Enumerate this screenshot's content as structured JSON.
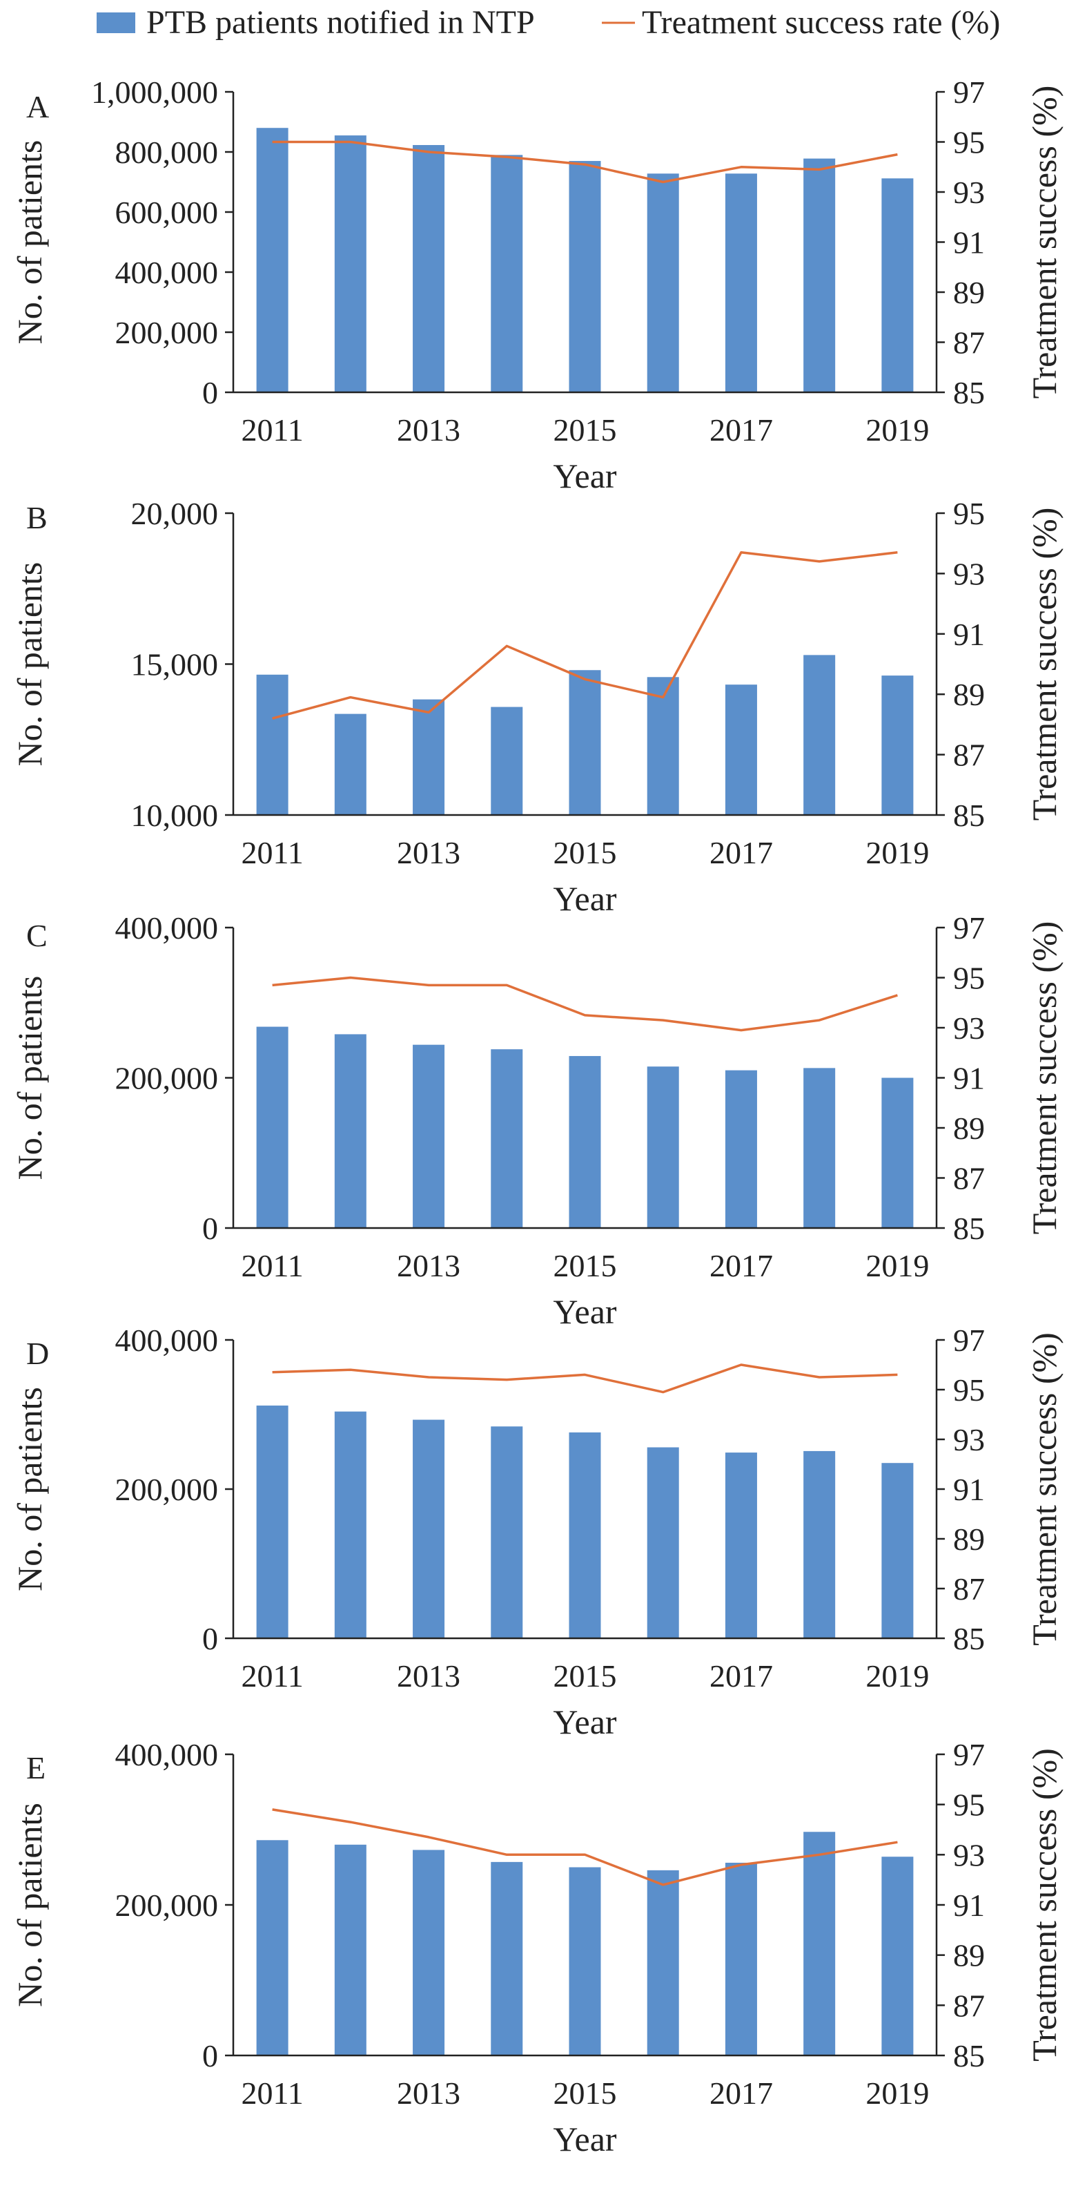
{
  "legend": {
    "bar_label": "PTB patients notified in NTP",
    "line_label": "Treatment success rate (%)"
  },
  "colors": {
    "bar": "#5b8fcb",
    "line": "#e0703a",
    "axis": "#222222"
  },
  "chart_data": [
    {
      "type": "bar",
      "panel": "A",
      "categories": [
        "2011",
        "2012",
        "2013",
        "2014",
        "2015",
        "2016",
        "2017",
        "2018",
        "2019"
      ],
      "x_tick_labels": [
        "2011",
        "2013",
        "2015",
        "2017",
        "2019"
      ],
      "series": [
        {
          "name": "PTB patients notified in NTP",
          "type": "bar",
          "axis": "left",
          "values": [
            880000,
            855000,
            823000,
            790000,
            770000,
            728000,
            728000,
            778000,
            712000
          ]
        },
        {
          "name": "Treatment success rate (%)",
          "type": "line",
          "axis": "right",
          "values": [
            95.0,
            95.0,
            94.6,
            94.4,
            94.1,
            93.4,
            94.0,
            93.9,
            94.5
          ]
        }
      ],
      "xlabel": "Year",
      "ylabel": "No. of patients",
      "y2label": "Treatment success (%)",
      "ylim": [
        0,
        1000000
      ],
      "yticks": [
        "0",
        "200,000",
        "400,000",
        "600,000",
        "800,000",
        "1,000,000"
      ],
      "y2lim": [
        85,
        97
      ],
      "y2ticks": [
        "85",
        "87",
        "89",
        "91",
        "93",
        "95",
        "97"
      ]
    },
    {
      "type": "bar",
      "panel": "B",
      "categories": [
        "2011",
        "2012",
        "2013",
        "2014",
        "2015",
        "2016",
        "2017",
        "2018",
        "2019"
      ],
      "x_tick_labels": [
        "2011",
        "2013",
        "2015",
        "2017",
        "2019"
      ],
      "series": [
        {
          "name": "PTB patients notified in NTP",
          "type": "bar",
          "axis": "left",
          "values": [
            14650,
            13350,
            13830,
            13580,
            14800,
            14570,
            14320,
            15300,
            14620
          ]
        },
        {
          "name": "Treatment success rate (%)",
          "type": "line",
          "axis": "right",
          "values": [
            88.2,
            88.9,
            88.4,
            90.6,
            89.5,
            88.9,
            93.7,
            93.4,
            93.7
          ]
        }
      ],
      "xlabel": "Year",
      "ylabel": "No. of patients",
      "y2label": "Treatment success (%)",
      "ylim": [
        10000,
        20000
      ],
      "yticks": [
        "10,000",
        "15,000",
        "20,000"
      ],
      "y2lim": [
        85,
        95
      ],
      "y2ticks": [
        "85",
        "87",
        "89",
        "91",
        "93",
        "95"
      ]
    },
    {
      "type": "bar",
      "panel": "C",
      "categories": [
        "2011",
        "2012",
        "2013",
        "2014",
        "2015",
        "2016",
        "2017",
        "2018",
        "2019"
      ],
      "x_tick_labels": [
        "2011",
        "2013",
        "2015",
        "2017",
        "2019"
      ],
      "series": [
        {
          "name": "PTB patients notified in NTP",
          "type": "bar",
          "axis": "left",
          "values": [
            268000,
            258000,
            244000,
            238000,
            229000,
            215000,
            210000,
            213000,
            200000
          ]
        },
        {
          "name": "Treatment success rate (%)",
          "type": "line",
          "axis": "right",
          "values": [
            94.7,
            95.0,
            94.7,
            94.7,
            93.5,
            93.3,
            92.9,
            93.3,
            94.3
          ]
        }
      ],
      "xlabel": "Year",
      "ylabel": "No. of patients",
      "y2label": "Treatment success (%)",
      "ylim": [
        0,
        400000
      ],
      "yticks": [
        "0",
        "200,000",
        "400,000"
      ],
      "y2lim": [
        85,
        97
      ],
      "y2ticks": [
        "85",
        "87",
        "89",
        "91",
        "93",
        "95",
        "97"
      ]
    },
    {
      "type": "bar",
      "panel": "D",
      "categories": [
        "2011",
        "2012",
        "2013",
        "2014",
        "2015",
        "2016",
        "2017",
        "2018",
        "2019"
      ],
      "x_tick_labels": [
        "2011",
        "2013",
        "2015",
        "2017",
        "2019"
      ],
      "series": [
        {
          "name": "PTB patients notified in NTP",
          "type": "bar",
          "axis": "left",
          "values": [
            312000,
            304000,
            293000,
            284000,
            276000,
            256000,
            249000,
            251000,
            235000
          ]
        },
        {
          "name": "Treatment success rate (%)",
          "type": "line",
          "axis": "right",
          "values": [
            95.7,
            95.8,
            95.5,
            95.4,
            95.6,
            94.9,
            96.0,
            95.5,
            95.6
          ]
        }
      ],
      "xlabel": "Year",
      "ylabel": "No. of patients",
      "y2label": "Treatment success (%)",
      "ylim": [
        0,
        400000
      ],
      "yticks": [
        "0",
        "200,000",
        "400,000"
      ],
      "y2lim": [
        85,
        97
      ],
      "y2ticks": [
        "85",
        "87",
        "89",
        "91",
        "93",
        "95",
        "97"
      ]
    },
    {
      "type": "bar",
      "panel": "E",
      "categories": [
        "2011",
        "2012",
        "2013",
        "2014",
        "2015",
        "2016",
        "2017",
        "2018",
        "2019"
      ],
      "x_tick_labels": [
        "2011",
        "2013",
        "2015",
        "2017",
        "2019"
      ],
      "series": [
        {
          "name": "PTB patients notified in NTP",
          "type": "bar",
          "axis": "left",
          "values": [
            286000,
            280000,
            273000,
            257000,
            250000,
            246000,
            256000,
            297000,
            264000
          ]
        },
        {
          "name": "Treatment success rate (%)",
          "type": "line",
          "axis": "right",
          "values": [
            94.8,
            94.3,
            93.7,
            93.0,
            93.0,
            91.8,
            92.6,
            93.0,
            93.5
          ]
        }
      ],
      "xlabel": "Year",
      "ylabel": "No. of patients",
      "y2label": "Treatment success (%)",
      "ylim": [
        0,
        400000
      ],
      "yticks": [
        "0",
        "200,000",
        "400,000"
      ],
      "y2lim": [
        85,
        97
      ],
      "y2ticks": [
        "85",
        "87",
        "89",
        "91",
        "93",
        "95",
        "97"
      ]
    }
  ]
}
